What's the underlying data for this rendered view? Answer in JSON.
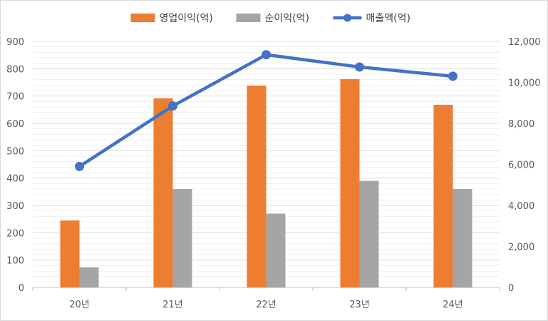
{
  "chart_data": {
    "type": "bar",
    "categories": [
      "20년",
      "21년",
      "22년",
      "23년",
      "24년"
    ],
    "series": [
      {
        "name": "영업이익(억)",
        "type": "bar",
        "axis": "left",
        "color": "#ed7d31",
        "values": [
          245,
          692,
          738,
          762,
          668
        ]
      },
      {
        "name": "순이익(억)",
        "type": "bar",
        "axis": "left",
        "color": "#a5a5a5",
        "values": [
          74,
          360,
          270,
          390,
          360
        ]
      },
      {
        "name": "매출액(억)",
        "type": "line",
        "axis": "right",
        "color": "#4472c4",
        "values": [
          5900,
          8850,
          11350,
          10750,
          10300
        ]
      }
    ],
    "y_left": {
      "min": 0,
      "max": 900,
      "step": 100,
      "tick_labels": [
        "0",
        "100",
        "200",
        "300",
        "400",
        "500",
        "600",
        "700",
        "800",
        "900"
      ]
    },
    "y_right": {
      "min": 0,
      "max": 12000,
      "step": 2000,
      "tick_labels": [
        "0",
        "2,000",
        "4,000",
        "6,000",
        "8,000",
        "10,000",
        "12,000"
      ]
    },
    "grid": true,
    "legend_position": "top",
    "title": "",
    "xlabel": "",
    "ylabel": ""
  }
}
